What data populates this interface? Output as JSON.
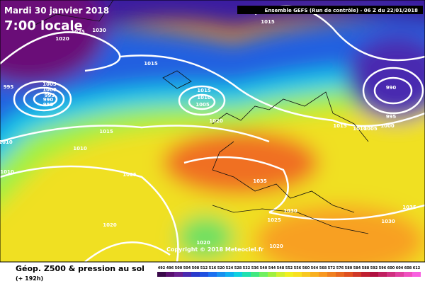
{
  "header": {
    "date": "Mardi 30 janvier 2018",
    "time": "7:00 locale",
    "run": "Ensemble GEFS (Run de contrôle)  -  06 Z du 22/01/2018"
  },
  "copyright": "Copyright © 2018 Meteociel.fr",
  "footer": {
    "title": "Géop. Z500 & pression au sol",
    "lead": "(+ 192h)"
  },
  "isobar_labels": [
    "1015",
    "1015",
    "1015",
    "1010",
    "1005",
    "1020",
    "1015",
    "1010",
    "1010",
    "1010",
    "995",
    "1005",
    "1000",
    "995",
    "990",
    "985",
    "1025",
    "1035",
    "1020",
    "1025",
    "1030",
    "1020",
    "1020",
    "1030",
    "1035",
    "990",
    "995",
    "1000",
    "1005",
    "1010",
    "1015",
    "1025",
    "1030",
    "1020"
  ],
  "colorbar": {
    "values": [
      492,
      496,
      500,
      504,
      508,
      512,
      516,
      520,
      524,
      528,
      532,
      536,
      540,
      544,
      548,
      552,
      556,
      560,
      564,
      568,
      572,
      576,
      580,
      584,
      588,
      592,
      596,
      600,
      604,
      608,
      612
    ],
    "colors": [
      "#3a0a4a",
      "#5a1070",
      "#6a2090",
      "#4a2ab0",
      "#2a3acc",
      "#2050e0",
      "#1c70f0",
      "#1890f0",
      "#10b0f0",
      "#10d0e0",
      "#20e0b0",
      "#40e880",
      "#70f060",
      "#a0f040",
      "#d0f030",
      "#f0f020",
      "#f8e020",
      "#f8c820",
      "#f8b020",
      "#f89820",
      "#f08020",
      "#e86820",
      "#e05020",
      "#d03828",
      "#c02030",
      "#b01040",
      "#c02060",
      "#d03080",
      "#e040a0",
      "#f050c0",
      "#f860e0"
    ]
  }
}
